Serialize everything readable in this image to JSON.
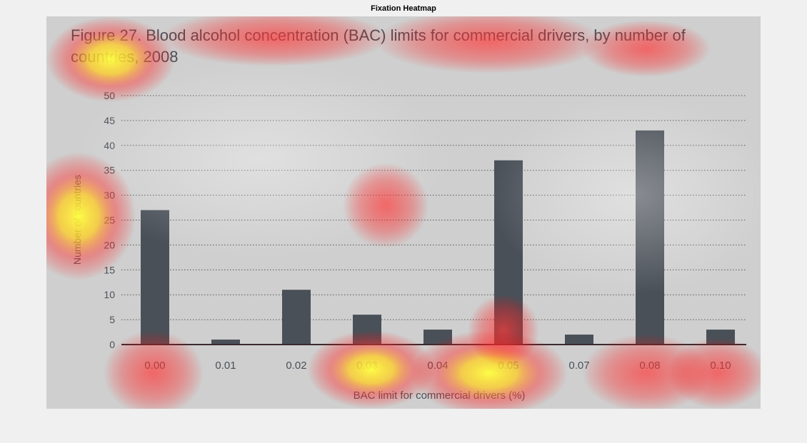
{
  "window": {
    "title": "Fixation Heatmap"
  },
  "chart_data": {
    "type": "bar",
    "figure_label": "Figure 27.",
    "title": "Blood alcohol concentration (BAC) limits for commercial drivers, by number of countries, 2008",
    "xlabel": "BAC limit for commercial drivers (%)",
    "ylabel": "Number of countries",
    "categories": [
      "0.00",
      "0.01",
      "0.02",
      "0.03",
      "0.04",
      "0.05",
      "0.07",
      "0.08",
      "0.10"
    ],
    "values": [
      27,
      1,
      11,
      6,
      3,
      37,
      2,
      43,
      3
    ],
    "ylim": [
      0,
      50
    ],
    "yticks": [
      0,
      5,
      10,
      15,
      20,
      25,
      30,
      35,
      40,
      45,
      50
    ],
    "grid": true,
    "colors": {
      "bar": "#4a5058",
      "grid": "#555555",
      "text": "#4a5058",
      "background": "#cfcfcf"
    }
  }
}
